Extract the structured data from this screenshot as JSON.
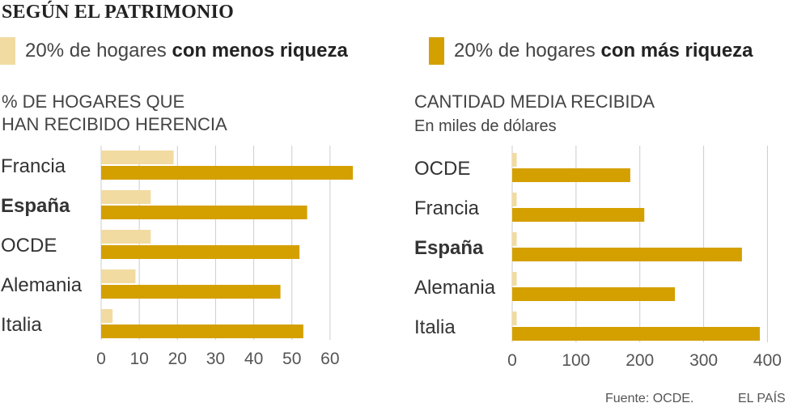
{
  "title": "SEGÚN EL PATRIMONIO",
  "legend": {
    "low": {
      "prefix": "20% de hogares ",
      "bold": "con menos riqueza",
      "color": "#f2dba1"
    },
    "high": {
      "prefix": "20% de hogares ",
      "bold": "con más riqueza",
      "color": "#d4a000"
    }
  },
  "chart_data": [
    {
      "type": "bar",
      "orientation": "horizontal",
      "title_line1": "% DE HOGARES QUE",
      "title_line2": "HAN RECIBIDO HERENCIA",
      "categories": [
        "Francia",
        "España",
        "OCDE",
        "Alemania",
        "Italia"
      ],
      "highlight": "España",
      "series": [
        {
          "name": "20% de hogares con menos riqueza",
          "values": [
            19,
            13,
            13,
            9,
            3
          ]
        },
        {
          "name": "20% de hogares con más riqueza",
          "values": [
            66,
            54,
            52,
            47,
            53
          ]
        }
      ],
      "xlim": [
        0,
        70
      ],
      "xticks": [
        0,
        10,
        20,
        30,
        40,
        50,
        60
      ],
      "grid": true
    },
    {
      "type": "bar",
      "orientation": "horizontal",
      "title": "CANTIDAD MEDIA RECIBIDA",
      "subtitle": "En miles de dólares",
      "categories": [
        "OCDE",
        "Francia",
        "España",
        "Alemania",
        "Italia"
      ],
      "highlight": "España",
      "series": [
        {
          "name": "20% de hogares con menos riqueza",
          "values": [
            7,
            7,
            7,
            7,
            7
          ]
        },
        {
          "name": "20% de hogares con más riqueza",
          "values": [
            185,
            207,
            360,
            255,
            388
          ]
        }
      ],
      "xlim": [
        0,
        440
      ],
      "xticks": [
        0,
        100,
        200,
        300,
        400
      ],
      "grid": true
    }
  ],
  "footer": {
    "source": "Fuente: OCDE.",
    "brand": "EL PAÍS"
  }
}
